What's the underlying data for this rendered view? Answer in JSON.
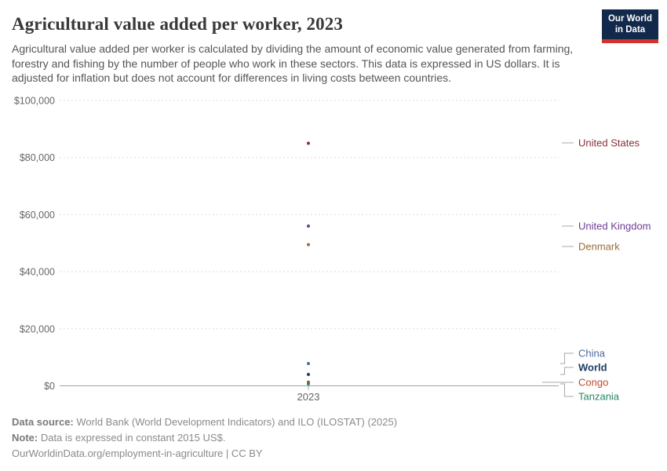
{
  "header": {
    "title": "Agricultural value added per worker, 2023",
    "subtitle": "Agricultural value added per worker is calculated by dividing the amount of economic value generated from farming, forestry and fishing by the number of people who work in these sectors. This data is expressed in US dollars. It is adjusted for inflation but does not account for differences in living costs between countries.",
    "logo": {
      "line1": "Our World",
      "line2": "in Data",
      "bg_color": "#12294B",
      "accent_color": "#D1332E"
    }
  },
  "chart_data": {
    "type": "scatter",
    "title": "Agricultural value added per worker, 2023",
    "x": [
      2023
    ],
    "x_tick_label": "2023",
    "ylabel": "",
    "ylim": [
      0,
      100000
    ],
    "y_ticks": [
      0,
      20000,
      40000,
      60000,
      80000,
      100000
    ],
    "y_tick_labels": [
      "$0",
      "$20,000",
      "$40,000",
      "$60,000",
      "$80,000",
      "$100,000"
    ],
    "grid": "horizontal-dashed",
    "legend_position": "right-of-plot entity labels",
    "unit": "constant 2015 US$",
    "series": [
      {
        "name": "United States",
        "year": 2023,
        "value": 85000,
        "color": "#883039",
        "label_y": 182,
        "bold": false
      },
      {
        "name": "United Kingdom",
        "year": 2023,
        "value": 56000,
        "color": "#6D3E91",
        "label_y": 288,
        "bold": false
      },
      {
        "name": "Denmark",
        "year": 2023,
        "value": 49500,
        "color": "#996D39",
        "label_y": 314,
        "bold": false
      },
      {
        "name": "China",
        "year": 2023,
        "value": 7800,
        "color": "#4C6A9C",
        "label_y": 450,
        "bold": false
      },
      {
        "name": "World",
        "year": 2023,
        "value": 4000,
        "color": "#1D3D63",
        "label_y": 468,
        "bold": true
      },
      {
        "name": "Congo",
        "year": 2023,
        "value": 1300,
        "color": "#BC4B29",
        "label_y": 487,
        "bold": false
      },
      {
        "name": "Tanzania",
        "year": 2023,
        "value": 700,
        "color": "#2C8465",
        "label_y": 505,
        "bold": false
      }
    ]
  },
  "footer": {
    "source_label": "Data source:",
    "source_text": " World Bank (World Development Indicators) and ILO (ILOSTAT) (2025)",
    "note_label": "Note:",
    "note_text": " Data is expressed in constant 2015 US$.",
    "url": "OurWorldinData.org/employment-in-agriculture",
    "separator": " | ",
    "license": "CC BY"
  }
}
